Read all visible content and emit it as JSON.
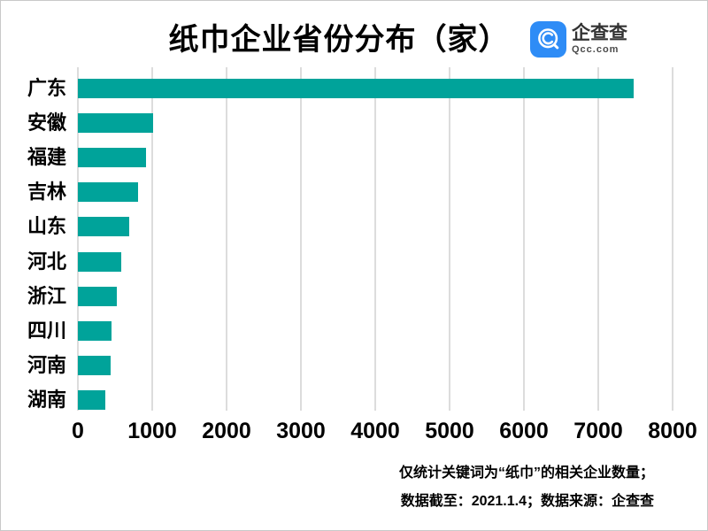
{
  "header": {
    "title": "纸巾企业省份分布（家）",
    "logo": {
      "name": "企查查",
      "domain": "Qcc.com",
      "icon": "qcc-spiral-magnifier",
      "brand_blue": "#2e8cf6"
    }
  },
  "chart_data": {
    "type": "bar",
    "orientation": "horizontal",
    "title": "纸巾企业省份分布（家）",
    "categories": [
      "广东",
      "安徽",
      "福建",
      "吉林",
      "山东",
      "河北",
      "浙江",
      "四川",
      "河南",
      "湖南"
    ],
    "values": [
      7480,
      1010,
      920,
      810,
      685,
      580,
      520,
      450,
      445,
      370
    ],
    "xlabel": "",
    "ylabel": "",
    "xlim": [
      0,
      8000
    ],
    "x_ticks": [
      0,
      1000,
      2000,
      3000,
      4000,
      5000,
      6000,
      7000,
      8000
    ],
    "grid": "vertical-only",
    "legend": "none",
    "bar_color": "#00a39a",
    "gridline_color": "#dcdcdc"
  },
  "footer": {
    "note_line1": "仅统计关键词为“纸巾”的相关企业数量；",
    "note_line2": "数据截至：2021.1.4；数据来源：企查查"
  }
}
